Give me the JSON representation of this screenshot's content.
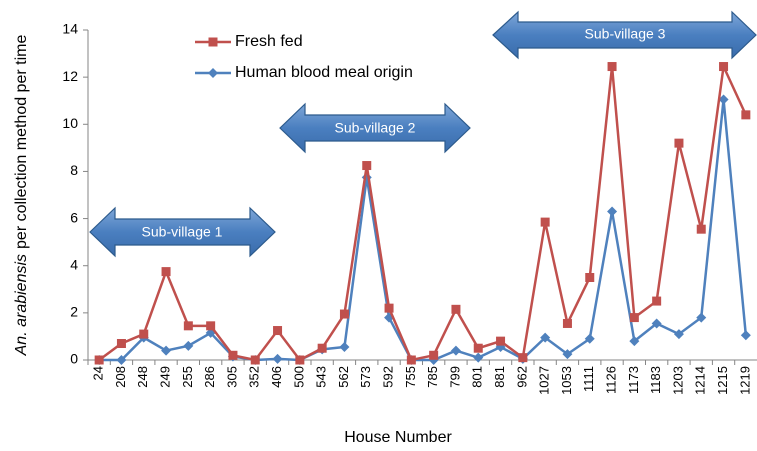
{
  "chart_data": {
    "type": "line",
    "ylabel": [
      "An. arabiensis",
      "per collection method per time"
    ],
    "xlabel": "House Number",
    "categories": [
      "24",
      "208",
      "248",
      "249",
      "255",
      "286",
      "305",
      "352",
      "406",
      "500",
      "543",
      "562",
      "573",
      "592",
      "755",
      "785",
      "799",
      "801",
      "881",
      "962",
      "1027",
      "1053",
      "1111",
      "1126",
      "1173",
      "1183",
      "1203",
      "1214",
      "1215",
      "1219"
    ],
    "series": [
      {
        "name": "Fresh fed",
        "color": "#c0504d",
        "marker": "square",
        "values": [
          0,
          0.7,
          1.1,
          3.75,
          1.45,
          1.45,
          0.2,
          0,
          1.25,
          0,
          0.5,
          1.95,
          8.25,
          2.2,
          0,
          0.2,
          2.15,
          0.5,
          0.8,
          0.1,
          5.85,
          1.55,
          3.5,
          12.45,
          1.8,
          2.5,
          9.2,
          5.55,
          12.45,
          10.4
        ]
      },
      {
        "name": "Human blood meal origin",
        "color": "#4f81bd",
        "marker": "diamond",
        "values": [
          0,
          0,
          0.95,
          0.4,
          0.6,
          1.15,
          0.15,
          0,
          0.05,
          0,
          0.45,
          0.55,
          7.75,
          1.8,
          0,
          0,
          0.4,
          0.1,
          0.55,
          0.05,
          0.95,
          0.25,
          0.9,
          6.3,
          0.8,
          1.55,
          1.1,
          1.8,
          11.05,
          1.05
        ]
      }
    ],
    "ylim": [
      0,
      14
    ],
    "yticks": [
      0,
      2,
      4,
      6,
      8,
      10,
      12,
      14
    ],
    "legend": "upper left",
    "grid": false,
    "annotations": [
      "Sub-village 1",
      "Sub-village 2",
      "Sub-village 3"
    ]
  }
}
